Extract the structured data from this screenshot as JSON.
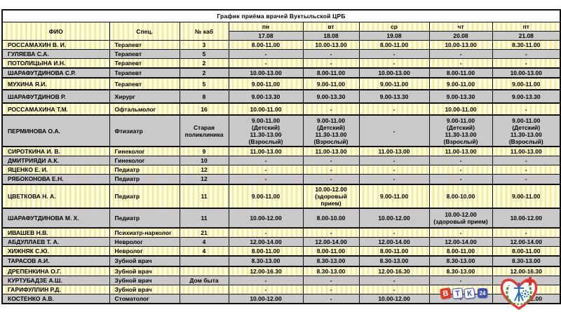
{
  "title": "График приёма врачей Вуктыльской ЦРБ",
  "table": {
    "columns": [
      "ФИО",
      "Спец.",
      "№ каб",
      "пн",
      "вт",
      "ср",
      "чт",
      "пт"
    ],
    "dates": [
      "17.08",
      "18.08",
      "19.08",
      "20.08",
      "21.08"
    ],
    "rows": [
      {
        "fio": "РОССАМАХИН В. И.",
        "spec": "Терапевт",
        "room": "3",
        "days": [
          "8.00-11.00",
          "10.00-13.00",
          "8.00-11.00",
          "10.00-13.00",
          "8.30-11.00"
        ]
      },
      {
        "fio": "ГУЛЯЕВА С.А.",
        "spec": "Терапевт",
        "room": "5",
        "days": [
          "-",
          "-",
          "-",
          "-",
          "-"
        ]
      },
      {
        "fio": "ПОТОЛИЦЫНА И.Н.",
        "spec": "Терапевт",
        "room": "2",
        "days": [
          "-",
          "-",
          "-",
          "-",
          "-"
        ]
      },
      {
        "fio": "ШАРАФУТДИНОВА С.Р.",
        "spec": "Терапевт",
        "room": "2",
        "days": [
          "10.00-13.00",
          "8.00-11.00",
          "10.00-13.00",
          "8.00-11.00",
          "10.00-13.00"
        ]
      },
      {
        "fio": "МУХИНА Я.И.",
        "spec": "Терапевт",
        "room": "5",
        "days": [
          "9.00-11.00",
          "9.00-11.00",
          "9.00-11.00",
          "9.00-11.00",
          "9.00-11.00"
        ]
      },
      {
        "fio": "ШАРАФУТДИНОВ Р.",
        "spec": "Хирург",
        "room": "8",
        "days": [
          "9.00-13.30",
          "9.00-13.30",
          "9.00-13.30",
          "9.00-13.30",
          "9.00-13.30"
        ]
      },
      {
        "fio": "РОССАМАХИНА Т.М.",
        "spec": "Офтальмолог",
        "room": "16",
        "days": [
          "10.00-11.00",
          "-",
          "-",
          "10.00-11.00",
          "-"
        ]
      },
      {
        "fio": "ПЕРМИНОВА О.А.",
        "spec": "Фтизиатр",
        "room": "Старая\nполиклиника",
        "days": [
          "9.00-11.00\n(Детский)\n11.30-13.00\n(Взрослый)",
          "9.00-11.00\n(Детский)\n11.30-13.00\n(Взрослый)",
          "-",
          "9.00-11.00\n(Детский)\n11.30-13.00\n(Взрослый)",
          "9.00-11.00\n(Детский)\n11.30-13.00\n(Взрослый)"
        ]
      },
      {
        "fio": "СИРОТКИНА И. В.",
        "spec": "Гинеколог",
        "room": "9",
        "days": [
          "11.00-13.00",
          "11.00-13.00",
          "11.00-13.00",
          "11.00-13.00",
          "11.00-13.00"
        ]
      },
      {
        "fio": "ДМИТРИЯДИ А.К.",
        "spec": "Гинеколог",
        "room": "10",
        "days": [
          "-",
          "-",
          "-",
          "-",
          "-"
        ]
      },
      {
        "fio": "ЯЦЕНКО Е. И.",
        "spec": "Педиатр",
        "room": "12",
        "days": [
          "-",
          "-",
          "-",
          "-",
          "-"
        ]
      },
      {
        "fio": "РЯБОКОНОВА Е.Н.",
        "spec": "Педиатр",
        "room": "12",
        "days": [
          "-",
          "-",
          "-",
          "-",
          "-"
        ]
      },
      {
        "fio": "ЦВЕТКОВА Н. А.",
        "spec": "Педиатр",
        "room": "11",
        "days": [
          "9.00-11.00",
          "10.00-12.00\n(здоровый прием)",
          "9.00-11.00",
          "8.00-10.00",
          "9.00-11.00"
        ]
      },
      {
        "fio": "ШАРАФУТДИНОВА М. Х.",
        "spec": "Педиатр",
        "room": "11",
        "days": [
          "10.00-12.00",
          "8.00-10.00",
          "10.00-12.00",
          "10.00-12.00\n(здоровый прием)",
          "10.00-12.00"
        ]
      },
      {
        "fio": "ИВАШЕВ Н.В.",
        "spec": "Психиатр-нарколог",
        "room": "21",
        "days": [
          "-",
          "-",
          "-",
          "-",
          "-"
        ]
      },
      {
        "fio": "АБДУЛЛАЕВ Т. А.",
        "spec": "Невролог",
        "room": "4",
        "days": [
          "12.00-14.00",
          "12.00-14.00",
          "12.00-14.00",
          "12.00-14.00",
          "12.00-14.00"
        ]
      },
      {
        "fio": "ХИЖНЯК С.Ю.",
        "spec": "Невролог",
        "room": "4",
        "days": [
          "8.00-11.00",
          "8.00-11.00",
          "8.00-11.00",
          "8.00-11.00",
          "8.00-11.00"
        ]
      },
      {
        "fio": "ТАРАСОВ А.И.",
        "spec": "Зубной врач",
        "room": "",
        "days": [
          "8.30-13.00",
          "8.30-13.00",
          "8.30-13.00",
          "8.30-13.00",
          "8.30-13.00"
        ]
      },
      {
        "fio": "ДРЕПЕНКИНА О.Г.",
        "spec": "Зубной врач",
        "room": "",
        "days": [
          "12.00-16.30",
          "8.30-13.00",
          "12.00-16.30",
          "8.30-13.00",
          "12.00-16.30"
        ]
      },
      {
        "fio": "КУРТУБАДЗЕ А.Ш.",
        "spec": "Зубной врач",
        "room": "Дом быта",
        "days": [
          "-",
          "-",
          "-",
          "-",
          "-"
        ]
      },
      {
        "fio": "ГАРИФУЛЛИН Р.Д.",
        "spec": "Зубной врач",
        "room": "",
        "days": [
          "-",
          "-",
          "-",
          "-",
          "-"
        ]
      },
      {
        "fio": "КОСТЕНКО А.В.",
        "spec": "Стоматолог",
        "room": "",
        "days": [
          "10.00-12.00",
          "-",
          "10.00-12.00",
          "-",
          "10.00-12.00"
        ]
      }
    ]
  },
  "footer": {
    "vtk_logo": {
      "letters": [
        "В",
        "Т",
        "К"
      ],
      "badge": "24"
    }
  },
  "colors": {
    "row_yellow": "#fffedd",
    "row_yellow_stripe": "#f3e9a9",
    "row_gray": "#c9c9c9",
    "border": "#111111",
    "logo_red": "#dd3a2c",
    "logo_blue": "#3f51b5",
    "logo_green": "#3d9b35"
  }
}
